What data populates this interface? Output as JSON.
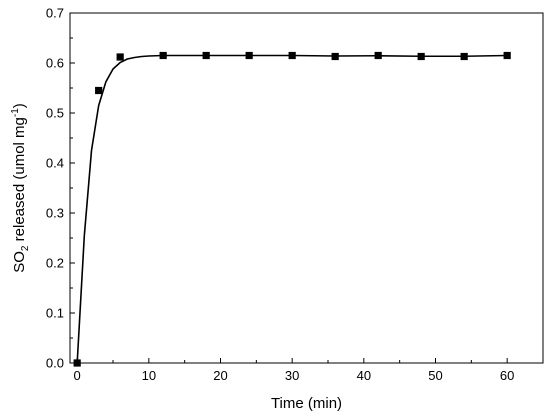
{
  "chart_data": {
    "type": "scatter",
    "xlabel": "Time (min)",
    "ylabel_parts": [
      "SO",
      "2",
      " released (umol mg",
      "-1",
      ")"
    ],
    "xlim": [
      -1,
      65
    ],
    "ylim": [
      0,
      0.7
    ],
    "x_ticks": [
      0,
      10,
      20,
      30,
      40,
      50,
      60
    ],
    "y_ticks": [
      0.0,
      0.1,
      0.2,
      0.3,
      0.4,
      0.5,
      0.6,
      0.7
    ],
    "y_tick_decimals": 1,
    "grid": false,
    "series": [
      {
        "kind": "markers",
        "marker": "square",
        "color": "#000000",
        "points": [
          [
            0,
            0.0
          ],
          [
            3,
            0.545
          ],
          [
            6,
            0.612
          ],
          [
            12,
            0.615
          ],
          [
            18,
            0.615
          ],
          [
            24,
            0.615
          ],
          [
            30,
            0.615
          ],
          [
            36,
            0.613
          ],
          [
            42,
            0.615
          ],
          [
            48,
            0.613
          ],
          [
            54,
            0.613
          ],
          [
            60,
            0.615
          ]
        ]
      },
      {
        "kind": "line",
        "color": "#000000",
        "points": [
          [
            0,
            0.0
          ],
          [
            1,
            0.255
          ],
          [
            2,
            0.425
          ],
          [
            3,
            0.515
          ],
          [
            4,
            0.562
          ],
          [
            5,
            0.588
          ],
          [
            6,
            0.601
          ],
          [
            7,
            0.608
          ],
          [
            8,
            0.611
          ],
          [
            9,
            0.613
          ],
          [
            10,
            0.614
          ],
          [
            12,
            0.615
          ],
          [
            18,
            0.615
          ],
          [
            24,
            0.615
          ],
          [
            30,
            0.615
          ],
          [
            36,
            0.614
          ],
          [
            42,
            0.6145
          ],
          [
            48,
            0.6135
          ],
          [
            54,
            0.6135
          ],
          [
            60,
            0.615
          ]
        ]
      }
    ]
  }
}
